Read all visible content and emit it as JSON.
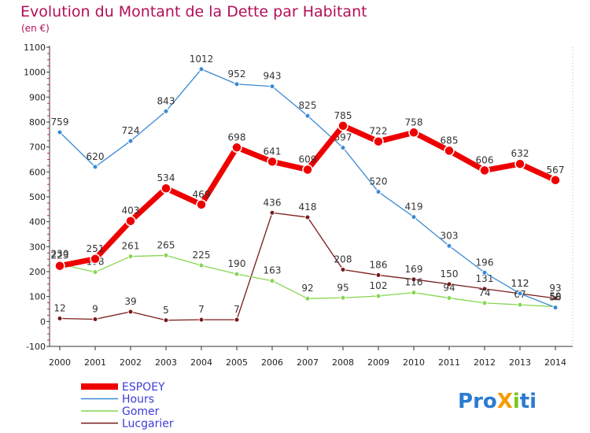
{
  "chart_data": {
    "type": "line",
    "title": "Evolution du Montant de la Dette par Habitant",
    "unit": "(en €)",
    "x": [
      "2000",
      "2001",
      "2002",
      "2003",
      "2004",
      "2005",
      "2006",
      "2007",
      "2008",
      "2009",
      "2010",
      "2011",
      "2012",
      "2013",
      "2014"
    ],
    "y_ticks": [
      "-100",
      "0",
      "100",
      "200",
      "300",
      "400",
      "500",
      "600",
      "700",
      "800",
      "900",
      "1000",
      "1100"
    ],
    "ylim": [
      -100,
      1100
    ],
    "grid": false,
    "legend_position": "bottom-left",
    "series": [
      {
        "name": "Lucgarier",
        "color": "#7a1a1a",
        "line_width": 1.3,
        "marker_r": 3,
        "values": [
          12,
          9,
          39,
          5,
          7,
          7,
          436,
          418,
          208,
          186,
          169,
          150,
          131,
          112,
          93
        ],
        "labels": [
          "12",
          "9",
          "39",
          "5",
          "7",
          "7",
          "436",
          "418",
          "208",
          "186",
          "169",
          "150",
          "131",
          "112",
          "93"
        ]
      },
      {
        "name": "Gomer",
        "color": "#86d650",
        "line_width": 1.3,
        "marker_r": 3,
        "values": [
          230,
          198,
          261,
          265,
          225,
          190,
          163,
          92,
          95,
          102,
          116,
          94,
          74,
          67,
          59
        ],
        "labels": [
          "230",
          "198",
          "261",
          "265",
          "225",
          "190",
          "163",
          "92",
          "95",
          "102",
          "116",
          "94",
          "74",
          "67",
          "59"
        ]
      },
      {
        "name": "Hours",
        "color": "#3a8ad4",
        "line_width": 1.3,
        "marker_r": 3,
        "values": [
          759,
          620,
          724,
          843,
          1012,
          952,
          943,
          825,
          697,
          520,
          419,
          303,
          196,
          112,
          56
        ],
        "labels": [
          "759",
          "620",
          "724",
          "843",
          "1012",
          "952",
          "943",
          "825",
          "697",
          "520",
          "419",
          "303",
          "196",
          "112",
          "56"
        ]
      },
      {
        "name": "ESPOEY",
        "color": "#ee0000",
        "line_width": 7,
        "marker_r": 6,
        "values": [
          223,
          251,
          403,
          534,
          469,
          698,
          641,
          609,
          785,
          722,
          758,
          685,
          606,
          632,
          567
        ],
        "labels": [
          "223",
          "251",
          "403",
          "534",
          "469",
          "698",
          "641",
          "609",
          "785",
          "722",
          "758",
          "685",
          "606",
          "632",
          "567"
        ]
      }
    ],
    "legend": [
      "ESPOEY",
      "Hours",
      "Gomer",
      "Lucgarier"
    ]
  },
  "logo": {
    "text": "ProXiti"
  }
}
